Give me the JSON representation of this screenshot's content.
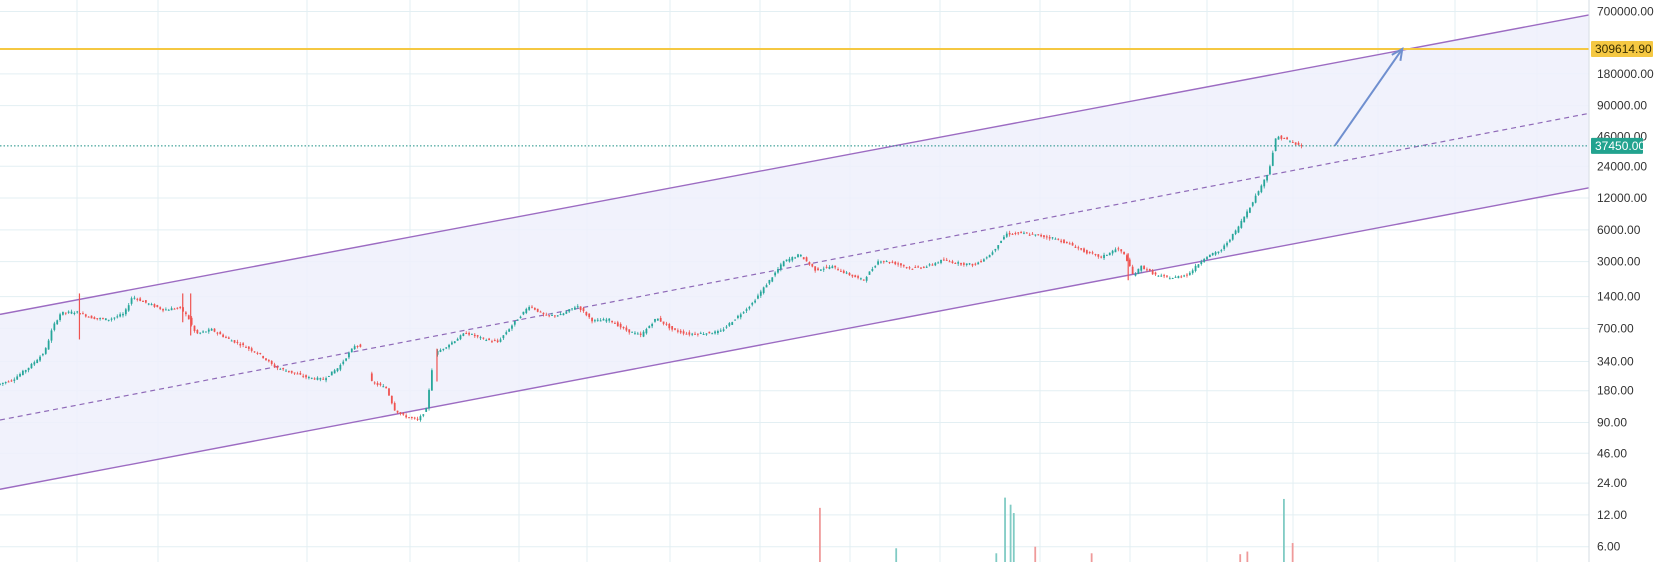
{
  "colors": {
    "background": "#ffffff",
    "grid": "#e3eff3",
    "channel_line": "#9c6bc2",
    "channel_fill": "#eef0fb",
    "midline": "#8f6ab8",
    "target_line": "#f5c842",
    "target_tag_text": "#3a2f00",
    "current_price_line": "#1a8f84",
    "current_price_tag": "#22a38f",
    "up_candle": "#26a69a",
    "down_candle": "#ef5350",
    "arrow": "#6f8fcf",
    "axis_text": "#333333"
  },
  "chart_data": {
    "type": "candlestick",
    "yscale": "log",
    "ylim": [
      4.3,
      900000
    ],
    "x_domain": [
      0,
      200
    ],
    "y_ticks": [
      "700000.00",
      "180000.00",
      "90000.00",
      "24000.00",
      "12000.00",
      "6000.00",
      "3000.00",
      "1400.00",
      "700.00",
      "340.00",
      "180.00",
      "90.00",
      "46.00",
      "24.00",
      "12.00",
      "6.00"
    ],
    "y_tick_values": [
      700000,
      180000,
      90000,
      24000,
      12000,
      6000,
      3000,
      1400,
      700,
      340,
      180,
      90,
      46,
      24,
      12,
      6
    ],
    "overlapped_tick": "46000.00",
    "overlapped_tick_value": 46000,
    "target_price": {
      "label": "309614.90",
      "value": 309614.9
    },
    "current_price": {
      "label": "37450.00",
      "value": 37450
    },
    "channel": {
      "upper": [
        [
          0,
          950
        ],
        [
          200,
          650000
        ]
      ],
      "lower": [
        [
          0,
          21
        ],
        [
          200,
          15000
        ]
      ],
      "mid": [
        [
          0,
          95
        ],
        [
          200,
          76000
        ]
      ]
    },
    "arrow": {
      "from": [
        168,
        37450
      ],
      "to": [
        176.5,
        309614.9
      ]
    },
    "price_path": [
      [
        0,
        205
      ],
      [
        2,
        230
      ],
      [
        4,
        300
      ],
      [
        6,
        420
      ],
      [
        7,
        720
      ],
      [
        8,
        980
      ],
      [
        10,
        1000
      ],
      [
        12,
        880
      ],
      [
        14,
        850
      ],
      [
        16,
        960
      ],
      [
        17,
        1400
      ],
      [
        19,
        1200
      ],
      [
        21,
        1050
      ],
      [
        23,
        1100
      ],
      [
        24,
        900
      ],
      [
        25,
        620
      ],
      [
        27,
        680
      ],
      [
        29,
        560
      ],
      [
        31,
        480
      ],
      [
        33,
        400
      ],
      [
        35,
        300
      ],
      [
        37,
        270
      ],
      [
        39,
        240
      ],
      [
        41,
        230
      ],
      [
        43,
        300
      ],
      [
        45,
        480
      ],
      [
        46,
        480
      ],
      [
        47,
        220
      ],
      [
        49,
        190
      ],
      [
        50,
        120
      ],
      [
        51,
        105
      ],
      [
        53,
        95
      ],
      [
        54,
        120
      ],
      [
        55,
        400
      ],
      [
        57,
        500
      ],
      [
        59,
        640
      ],
      [
        61,
        560
      ],
      [
        63,
        520
      ],
      [
        65,
        780
      ],
      [
        67,
        1150
      ],
      [
        69,
        920
      ],
      [
        71,
        940
      ],
      [
        73,
        1150
      ],
      [
        75,
        820
      ],
      [
        77,
        850
      ],
      [
        79,
        680
      ],
      [
        81,
        600
      ],
      [
        83,
        880
      ],
      [
        85,
        680
      ],
      [
        87,
        620
      ],
      [
        89,
        630
      ],
      [
        91,
        650
      ],
      [
        93,
        880
      ],
      [
        95,
        1200
      ],
      [
        97,
        1900
      ],
      [
        99,
        3000
      ],
      [
        101,
        3500
      ],
      [
        103,
        2500
      ],
      [
        105,
        2700
      ],
      [
        107,
        2300
      ],
      [
        109,
        2000
      ],
      [
        111,
        3100
      ],
      [
        113,
        2900
      ],
      [
        115,
        2600
      ],
      [
        117,
        2700
      ],
      [
        119,
        3100
      ],
      [
        121,
        2900
      ],
      [
        123,
        2800
      ],
      [
        125,
        3500
      ],
      [
        127,
        5500
      ],
      [
        129,
        5600
      ],
      [
        131,
        5300
      ],
      [
        133,
        5000
      ],
      [
        135,
        4400
      ],
      [
        137,
        3700
      ],
      [
        139,
        3300
      ],
      [
        141,
        4000
      ],
      [
        142,
        3400
      ],
      [
        143,
        2200
      ],
      [
        144,
        2700
      ],
      [
        146,
        2200
      ],
      [
        148,
        2100
      ],
      [
        150,
        2300
      ],
      [
        152,
        3300
      ],
      [
        154,
        3800
      ],
      [
        156,
        6000
      ],
      [
        158,
        11000
      ],
      [
        160,
        21000
      ],
      [
        161,
        46000
      ],
      [
        162,
        44000
      ],
      [
        163,
        40000
      ],
      [
        164,
        37450
      ]
    ],
    "wicks": [
      [
        10,
        550,
        1500
      ],
      [
        23,
        800,
        1500
      ],
      [
        24,
        600,
        1500
      ],
      [
        55,
        220,
        450
      ],
      [
        142,
        2000,
        3600
      ]
    ],
    "gaps": [
      [
        45.5,
        46.5
      ],
      [
        54.5,
        55.0
      ]
    ],
    "volume": {
      "baseline_price": 4.3,
      "bars": [
        {
          "x": 103.2,
          "top": 14,
          "color": "#ef9a9a"
        },
        {
          "x": 112.8,
          "top": 5.8,
          "color": "#80cbc4"
        },
        {
          "x": 125.4,
          "top": 5.2,
          "color": "#80cbc4"
        },
        {
          "x": 126.5,
          "top": 17.5,
          "color": "#80cbc4"
        },
        {
          "x": 127.2,
          "top": 15,
          "color": "#80cbc4"
        },
        {
          "x": 127.6,
          "top": 12.5,
          "color": "#80cbc4"
        },
        {
          "x": 130.3,
          "top": 6,
          "color": "#ef9a9a"
        },
        {
          "x": 137.4,
          "top": 5.2,
          "color": "#ef9a9a"
        },
        {
          "x": 156.1,
          "top": 5.1,
          "color": "#ef9a9a"
        },
        {
          "x": 157.0,
          "top": 5.4,
          "color": "#ef9a9a"
        },
        {
          "x": 161.6,
          "top": 17,
          "color": "#80cbc4"
        },
        {
          "x": 162.7,
          "top": 6.5,
          "color": "#ef9a9a"
        }
      ]
    }
  }
}
